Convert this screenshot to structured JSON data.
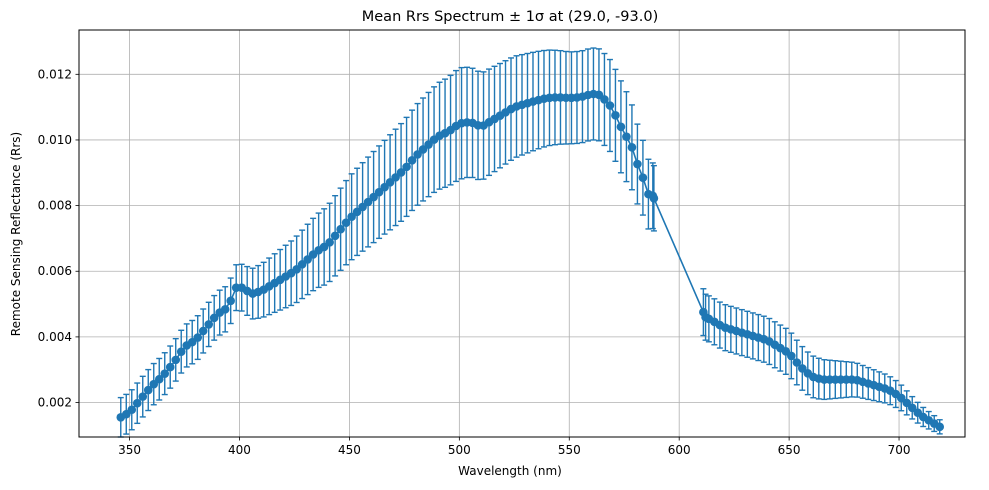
{
  "chart_data": {
    "type": "line",
    "title": "Mean Rrs Spectrum ± 1σ at (29.0, -93.0)",
    "xlabel": "Wavelength (nm)",
    "ylabel": "Remote Sensing Reflectance (Rrs)",
    "xlim": [
      327,
      730
    ],
    "ylim": [
      0.00095,
      0.01335
    ],
    "x_ticks": [
      350,
      400,
      450,
      500,
      550,
      600,
      650,
      700
    ],
    "y_ticks": [
      0.002,
      0.004,
      0.006,
      0.008,
      0.01,
      0.012
    ],
    "x_tick_labels": [
      "350",
      "400",
      "450",
      "500",
      "550",
      "600",
      "650",
      "700"
    ],
    "y_tick_labels": [
      "0.002",
      "0.004",
      "0.006",
      "0.008",
      "0.010",
      "0.012"
    ],
    "grid": true,
    "color": "#1f77b4",
    "grid_color": "#b0b0b0",
    "marker": "circle",
    "error_bars": "± 1σ",
    "series": [
      {
        "anchors_x": [
          346,
          350,
          355,
          360,
          365,
          370,
          375,
          380,
          385,
          390,
          395,
          398,
          402,
          405,
          410,
          415,
          420,
          425,
          430,
          435,
          440,
          445,
          450,
          455,
          460,
          465,
          470,
          475,
          480,
          485,
          490,
          495,
          500,
          505,
          510,
          515,
          520,
          525,
          530,
          535,
          540,
          545,
          550,
          555,
          560,
          563,
          565,
          568,
          570,
          572,
          575,
          578,
          580,
          583,
          585,
          587,
          588,
          612,
          615,
          620,
          625,
          630,
          635,
          640,
          645,
          650,
          655,
          660,
          665,
          670,
          675,
          680,
          685,
          690,
          695,
          700,
          705,
          710,
          715,
          720
        ],
        "anchors_y": [
          0.00155,
          0.0017,
          0.0021,
          0.0025,
          0.0028,
          0.0032,
          0.0037,
          0.0039,
          0.0043,
          0.0047,
          0.0049,
          0.0055,
          0.0055,
          0.0053,
          0.0054,
          0.0056,
          0.0058,
          0.006,
          0.0063,
          0.0066,
          0.0068,
          0.0072,
          0.0076,
          0.0079,
          0.0082,
          0.0085,
          0.0088,
          0.0091,
          0.0095,
          0.0098,
          0.0101,
          0.01025,
          0.0105,
          0.01055,
          0.0104,
          0.0106,
          0.0108,
          0.011,
          0.0111,
          0.0112,
          0.01128,
          0.0113,
          0.01128,
          0.0113,
          0.0114,
          0.0114,
          0.0113,
          0.0111,
          0.0109,
          0.0106,
          0.0102,
          0.0099,
          0.0094,
          0.009,
          0.0084,
          0.0083,
          0.0083,
          0.0046,
          0.0045,
          0.0043,
          0.0042,
          0.0041,
          0.004,
          0.0039,
          0.0037,
          0.0035,
          0.0031,
          0.0028,
          0.0027,
          0.0027,
          0.0027,
          0.0027,
          0.0026,
          0.0025,
          0.0024,
          0.0022,
          0.0019,
          0.0016,
          0.0014,
          0.0012
        ],
        "sigma_x": [
          346,
          400,
          450,
          500,
          550,
          575,
          588,
          612,
          650,
          700,
          720
        ],
        "sigma_y": [
          0.0006,
          0.0007,
          0.0013,
          0.0017,
          0.0014,
          0.0014,
          0.001,
          0.0007,
          0.0007,
          0.0004,
          0.0002
        ],
        "spacing_nm": 2.5,
        "gap": [
          590,
          610
        ]
      }
    ]
  }
}
